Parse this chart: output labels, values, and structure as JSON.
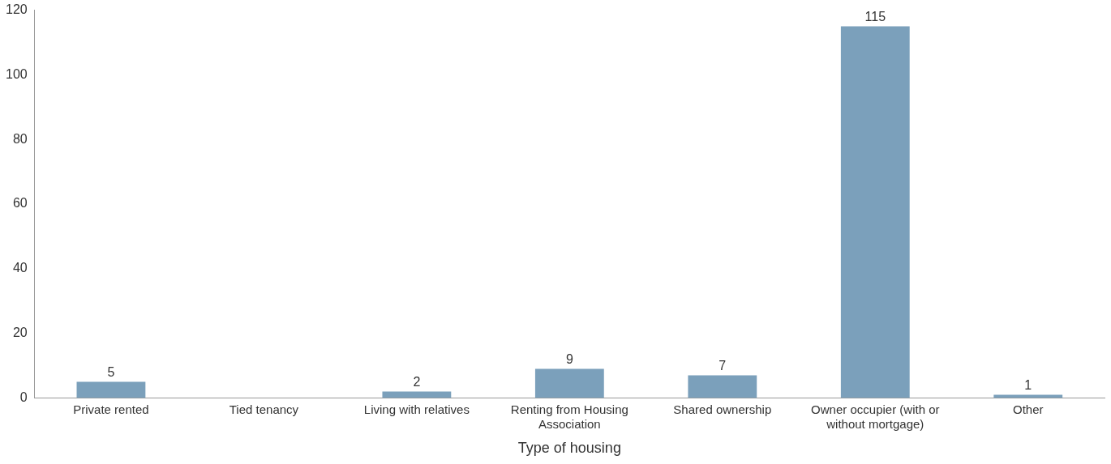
{
  "chart_data": {
    "type": "bar",
    "xlabel": "Type of housing",
    "categories": [
      "Private rented",
      "Tied tenancy",
      "Living with relatives",
      "Renting from Housing Association",
      "Shared ownership",
      "Owner occupier (with or without mortgage)",
      "Other"
    ],
    "values": [
      5,
      null,
      2,
      9,
      7,
      115,
      1
    ],
    "color": "#7ba0bb",
    "ylim": [
      0,
      120
    ],
    "yticks": [
      0,
      20,
      40,
      60,
      80,
      100,
      120
    ],
    "grid": false,
    "legend": false,
    "data_labels": true
  }
}
